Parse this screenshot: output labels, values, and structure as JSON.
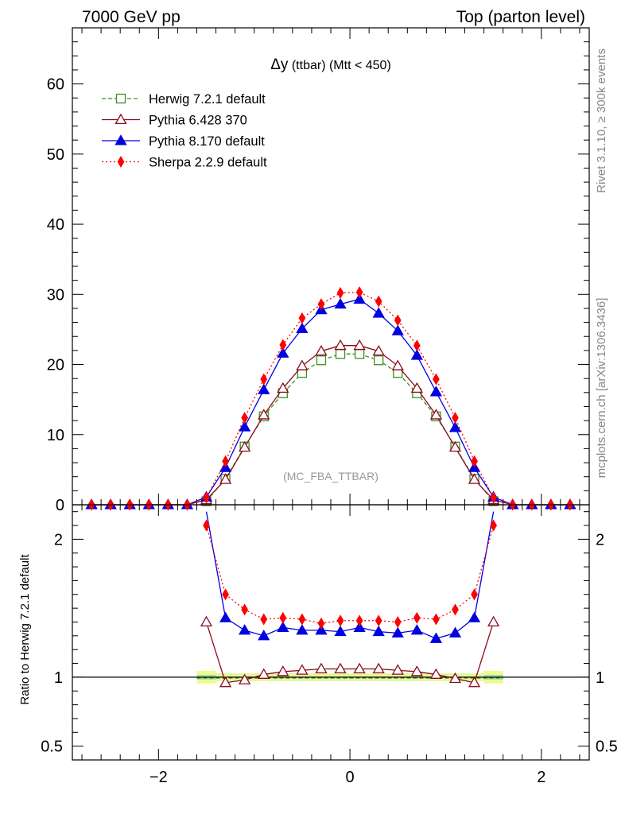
{
  "header": {
    "left": "7000 GeV pp",
    "right": "Top (parton level)"
  },
  "side_labels": {
    "rivet": "Rivet 3.1.10, ≥ 300k events",
    "mcplots": "mcplots.cern.ch [arXiv:1306.3436]"
  },
  "watermark": "(MC_FBA_TTBAR)",
  "chart_data": [
    {
      "type": "line",
      "panel": "main",
      "title_main": "Δy",
      "title_sub": " (ttbar) (Mtt < 450)",
      "xlabel": "",
      "ylabel": "",
      "xlim": [
        -2.9,
        2.5
      ],
      "ylim": [
        0,
        68
      ],
      "xticks": [
        -2,
        0,
        2
      ],
      "yticks": [
        0,
        10,
        20,
        30,
        40,
        50,
        60
      ],
      "ytick_labels": [
        "0",
        "10",
        "20",
        "30",
        "40",
        "50",
        "60"
      ],
      "legend_position": "top-left",
      "x": [
        -2.7,
        -2.5,
        -2.3,
        -2.1,
        -1.9,
        -1.7,
        -1.5,
        -1.3,
        -1.1,
        -0.9,
        -0.7,
        -0.5,
        -0.3,
        -0.1,
        0.1,
        0.3,
        0.5,
        0.7,
        0.9,
        1.1,
        1.3,
        1.5,
        1.7,
        1.9,
        2.1,
        2.3
      ],
      "series": [
        {
          "name": "Herwig 7.2.1 default",
          "color": "#3f8f1f",
          "dash": "5,3",
          "marker": "open-square",
          "values": [
            null,
            null,
            null,
            null,
            null,
            null,
            0.5,
            3.7,
            8.3,
            12.6,
            15.9,
            18.8,
            20.6,
            21.5,
            21.5,
            20.6,
            18.8,
            15.9,
            12.6,
            8.3,
            3.7,
            0.5,
            null,
            null,
            null,
            null
          ]
        },
        {
          "name": "Pythia 6.428 370",
          "color": "#8b0a1e",
          "dash": "",
          "marker": "open-triangle",
          "values": [
            0.0,
            0.0,
            0.0,
            0.0,
            0.0,
            0.0,
            0.7,
            3.6,
            8.2,
            12.8,
            16.6,
            19.8,
            21.9,
            22.7,
            22.7,
            21.9,
            19.8,
            16.6,
            12.8,
            8.2,
            3.6,
            0.7,
            0.0,
            0.0,
            0.0,
            0.0
          ]
        },
        {
          "name": "Pythia 8.170 default",
          "color": "#0000e0",
          "dash": "",
          "marker": "filled-triangle",
          "values": [
            0.0,
            0.0,
            0.0,
            0.0,
            0.0,
            0.0,
            1.1,
            5.3,
            11.1,
            16.4,
            21.6,
            25.1,
            27.8,
            28.6,
            29.3,
            27.3,
            24.8,
            21.3,
            16.1,
            11.0,
            5.3,
            1.1,
            0.0,
            0.0,
            0.0,
            0.0
          ]
        },
        {
          "name": "Sherpa 2.2.9 default",
          "color": "#ff0000",
          "dash": "2,3",
          "marker": "filled-diamond",
          "values": [
            0.0,
            0.0,
            0.0,
            0.0,
            0.0,
            0.0,
            1.0,
            6.2,
            12.4,
            17.9,
            22.8,
            26.6,
            28.6,
            30.2,
            30.3,
            29.0,
            26.3,
            22.7,
            17.9,
            12.4,
            6.2,
            1.0,
            0.0,
            0.0,
            0.0,
            0.0
          ]
        }
      ]
    },
    {
      "type": "line",
      "panel": "ratio",
      "ylabel": "Ratio to Herwig 7.2.1 default",
      "xlim": [
        -2.9,
        2.5
      ],
      "ylim": [
        0.4,
        2.25
      ],
      "xticks": [
        -2,
        0,
        2
      ],
      "xtick_labels": [
        "−2",
        "0",
        "2"
      ],
      "yticks": [
        0.5,
        1,
        2
      ],
      "ytick_labels": [
        "0.5",
        "1",
        "2"
      ],
      "reference_line": 1,
      "band_x": [
        -1.6,
        1.6
      ],
      "band_edge_half_width": 0.1,
      "x": [
        -1.5,
        -1.3,
        -1.1,
        -0.9,
        -0.7,
        -0.5,
        -0.3,
        -0.1,
        0.1,
        0.3,
        0.5,
        0.7,
        0.9,
        1.1,
        1.3,
        1.5
      ],
      "series": [
        {
          "name": "Pythia 6.428 370",
          "color": "#8b0a1e",
          "dash": "",
          "marker": "open-triangle",
          "values": [
            1.4,
            0.96,
            0.98,
            1.02,
            1.04,
            1.05,
            1.06,
            1.06,
            1.06,
            1.06,
            1.05,
            1.04,
            1.02,
            0.99,
            0.96,
            1.4
          ]
        },
        {
          "name": "Pythia 8.170 default",
          "color": "#0000e0",
          "dash": "",
          "marker": "filled-triangle",
          "values": [
            2.2,
            1.43,
            1.34,
            1.3,
            1.36,
            1.34,
            1.34,
            1.33,
            1.36,
            1.33,
            1.32,
            1.34,
            1.28,
            1.32,
            1.43,
            2.2
          ]
        },
        {
          "name": "Sherpa 2.2.9 default",
          "color": "#ff0000",
          "dash": "2,3",
          "marker": "filled-diamond",
          "values": [
            2.1,
            1.6,
            1.49,
            1.42,
            1.43,
            1.42,
            1.39,
            1.41,
            1.41,
            1.41,
            1.4,
            1.43,
            1.42,
            1.49,
            1.6,
            2.1
          ]
        }
      ]
    }
  ]
}
